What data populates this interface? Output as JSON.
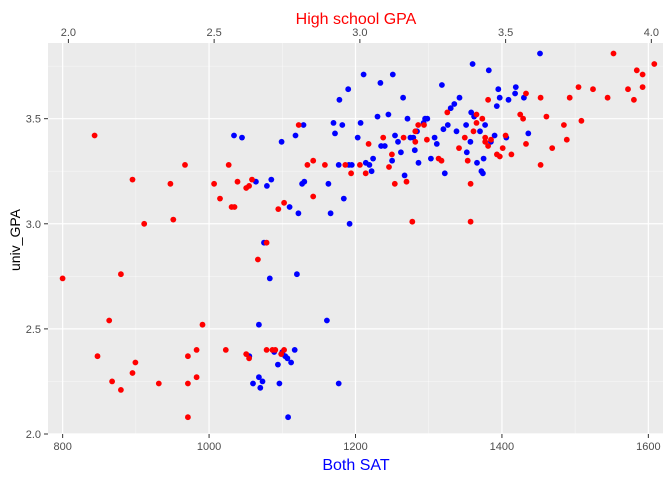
{
  "chart_data": {
    "type": "scatter",
    "xlabel": "Both SAT",
    "x2label": "High school GPA",
    "ylabel": "univ_GPA",
    "xlim": [
      780,
      1620
    ],
    "ylim": [
      2.0,
      3.86
    ],
    "x2lim": [
      1.93,
      4.04
    ],
    "xticks": [
      800,
      1000,
      1200,
      1400,
      1600
    ],
    "x2ticks": [
      "2.0",
      "2.5",
      "3.0",
      "3.5",
      "4.0"
    ],
    "yticks": [
      "2.0",
      "2.5",
      "3.0",
      "3.5"
    ],
    "grid": true,
    "colors": {
      "panel_bg": "#ebebeb",
      "grid_major": "#ffffff",
      "sat_series": "#0000ff",
      "hs_series": "#ff0000",
      "x_title": "#0000ff",
      "x2_title": "#ff0000"
    },
    "series": [
      {
        "axis": "bottom",
        "color": "#0000ff",
        "points": [
          [
            1034,
            3.42
          ],
          [
            1045,
            3.41
          ],
          [
            1055,
            2.37
          ],
          [
            1060,
            2.24
          ],
          [
            1064,
            3.2
          ],
          [
            1068,
            2.52
          ],
          [
            1068,
            2.27
          ],
          [
            1070,
            2.22
          ],
          [
            1073,
            2.25
          ],
          [
            1075,
            2.91
          ],
          [
            1079,
            3.18
          ],
          [
            1083,
            2.74
          ],
          [
            1085,
            3.21
          ],
          [
            1089,
            2.39
          ],
          [
            1094,
            2.33
          ],
          [
            1096,
            2.24
          ],
          [
            1099,
            3.39
          ],
          [
            1100,
            2.39
          ],
          [
            1104,
            2.37
          ],
          [
            1107,
            2.36
          ],
          [
            1108,
            2.08
          ],
          [
            1110,
            3.08
          ],
          [
            1112,
            2.34
          ],
          [
            1117,
            2.4
          ],
          [
            1118,
            3.42
          ],
          [
            1120,
            2.76
          ],
          [
            1122,
            3.05
          ],
          [
            1127,
            3.19
          ],
          [
            1129,
            3.47
          ],
          [
            1130,
            3.2
          ],
          [
            1161,
            2.54
          ],
          [
            1163,
            3.19
          ],
          [
            1166,
            3.05
          ],
          [
            1170,
            3.48
          ],
          [
            1172,
            3.43
          ],
          [
            1177,
            3.28
          ],
          [
            1177,
            2.24
          ],
          [
            1178,
            3.59
          ],
          [
            1182,
            3.47
          ],
          [
            1184,
            3.12
          ],
          [
            1190,
            3.64
          ],
          [
            1191,
            3.28
          ],
          [
            1192,
            3.0
          ],
          [
            1195,
            3.28
          ],
          [
            1203,
            3.41
          ],
          [
            1207,
            3.48
          ],
          [
            1211,
            3.71
          ],
          [
            1214,
            3.29
          ],
          [
            1219,
            3.28
          ],
          [
            1222,
            3.25
          ],
          [
            1224,
            3.31
          ],
          [
            1230,
            3.51
          ],
          [
            1234,
            3.67
          ],
          [
            1235,
            3.37
          ],
          [
            1240,
            3.37
          ],
          [
            1245,
            3.52
          ],
          [
            1250,
            3.3
          ],
          [
            1251,
            3.71
          ],
          [
            1254,
            3.42
          ],
          [
            1258,
            3.39
          ],
          [
            1262,
            3.34
          ],
          [
            1265,
            3.6
          ],
          [
            1267,
            3.23
          ],
          [
            1271,
            3.5
          ],
          [
            1275,
            3.41
          ],
          [
            1279,
            3.41
          ],
          [
            1281,
            3.35
          ],
          [
            1284,
            3.44
          ],
          [
            1286,
            3.29
          ],
          [
            1293,
            3.48
          ],
          [
            1295,
            3.5
          ],
          [
            1298,
            3.5
          ],
          [
            1303,
            3.31
          ],
          [
            1308,
            3.41
          ],
          [
            1311,
            3.38
          ],
          [
            1318,
            3.66
          ],
          [
            1320,
            3.45
          ],
          [
            1322,
            3.24
          ],
          [
            1326,
            3.47
          ],
          [
            1330,
            3.55
          ],
          [
            1335,
            3.57
          ],
          [
            1338,
            3.44
          ],
          [
            1342,
            3.6
          ],
          [
            1351,
            3.47
          ],
          [
            1352,
            3.34
          ],
          [
            1357,
            3.39
          ],
          [
            1358,
            3.53
          ],
          [
            1360,
            3.76
          ],
          [
            1362,
            3.51
          ],
          [
            1366,
            3.29
          ],
          [
            1370,
            3.44
          ],
          [
            1372,
            3.25
          ],
          [
            1374,
            3.24
          ],
          [
            1375,
            3.31
          ],
          [
            1377,
            3.47
          ],
          [
            1382,
            3.73
          ],
          [
            1385,
            3.39
          ],
          [
            1390,
            3.42
          ],
          [
            1393,
            3.56
          ],
          [
            1395,
            3.64
          ],
          [
            1397,
            3.6
          ],
          [
            1406,
            3.41
          ],
          [
            1409,
            3.59
          ],
          [
            1418,
            3.62
          ],
          [
            1419,
            3.65
          ],
          [
            1430,
            3.6
          ],
          [
            1436,
            3.43
          ],
          [
            1452,
            3.81
          ]
        ]
      },
      {
        "axis": "top",
        "color": "#ff0000",
        "points": [
          [
            1.98,
            2.74
          ],
          [
            2.09,
            3.42
          ],
          [
            2.1,
            2.37
          ],
          [
            2.14,
            2.54
          ],
          [
            2.15,
            2.25
          ],
          [
            2.18,
            2.76
          ],
          [
            2.18,
            2.21
          ],
          [
            2.22,
            3.21
          ],
          [
            2.22,
            2.29
          ],
          [
            2.23,
            2.34
          ],
          [
            2.26,
            3.0
          ],
          [
            2.31,
            2.24
          ],
          [
            2.35,
            3.19
          ],
          [
            2.36,
            3.02
          ],
          [
            2.4,
            3.28
          ],
          [
            2.41,
            2.37
          ],
          [
            2.41,
            2.24
          ],
          [
            2.41,
            2.08
          ],
          [
            2.44,
            2.4
          ],
          [
            2.44,
            2.27
          ],
          [
            2.46,
            2.52
          ],
          [
            2.5,
            3.19
          ],
          [
            2.52,
            3.12
          ],
          [
            2.54,
            2.4
          ],
          [
            2.55,
            3.28
          ],
          [
            2.56,
            3.08
          ],
          [
            2.57,
            3.08
          ],
          [
            2.58,
            3.2
          ],
          [
            2.61,
            3.17
          ],
          [
            2.62,
            3.18
          ],
          [
            2.61,
            2.38
          ],
          [
            2.62,
            2.36
          ],
          [
            2.63,
            3.21
          ],
          [
            2.65,
            2.83
          ],
          [
            2.68,
            2.91
          ],
          [
            2.68,
            2.4
          ],
          [
            2.7,
            2.4
          ],
          [
            2.71,
            2.4
          ],
          [
            2.72,
            3.07
          ],
          [
            2.73,
            2.38
          ],
          [
            2.74,
            3.1
          ],
          [
            2.74,
            2.4
          ],
          [
            2.79,
            3.47
          ],
          [
            2.82,
            3.28
          ],
          [
            2.84,
            3.3
          ],
          [
            2.84,
            3.13
          ],
          [
            2.88,
            3.28
          ],
          [
            2.95,
            3.28
          ],
          [
            2.97,
            3.24
          ],
          [
            3.0,
            3.28
          ],
          [
            3.02,
            3.24
          ],
          [
            3.03,
            3.38
          ],
          [
            3.08,
            3.41
          ],
          [
            3.1,
            3.27
          ],
          [
            3.11,
            3.33
          ],
          [
            3.12,
            3.19
          ],
          [
            3.15,
            3.41
          ],
          [
            3.16,
            3.2
          ],
          [
            3.18,
            3.01
          ],
          [
            3.19,
            3.44
          ],
          [
            3.19,
            3.39
          ],
          [
            3.2,
            3.47
          ],
          [
            3.22,
            3.47
          ],
          [
            3.23,
            3.4
          ],
          [
            3.27,
            3.31
          ],
          [
            3.28,
            3.3
          ],
          [
            3.3,
            3.53
          ],
          [
            3.34,
            3.36
          ],
          [
            3.36,
            3.41
          ],
          [
            3.37,
            3.3
          ],
          [
            3.38,
            3.19
          ],
          [
            3.38,
            3.01
          ],
          [
            3.39,
            3.44
          ],
          [
            3.4,
            3.48
          ],
          [
            3.4,
            3.52
          ],
          [
            3.42,
            3.5
          ],
          [
            3.43,
            3.41
          ],
          [
            3.43,
            3.39
          ],
          [
            3.44,
            3.37
          ],
          [
            3.44,
            3.59
          ],
          [
            3.45,
            3.4
          ],
          [
            3.47,
            3.33
          ],
          [
            3.48,
            3.32
          ],
          [
            3.49,
            3.36
          ],
          [
            3.5,
            3.42
          ],
          [
            3.52,
            3.33
          ],
          [
            3.55,
            3.52
          ],
          [
            3.56,
            3.5
          ],
          [
            3.57,
            3.38
          ],
          [
            3.57,
            3.62
          ],
          [
            3.62,
            3.28
          ],
          [
            3.62,
            3.6
          ],
          [
            3.64,
            3.51
          ],
          [
            3.66,
            3.36
          ],
          [
            3.7,
            3.47
          ],
          [
            3.71,
            3.4
          ],
          [
            3.72,
            3.6
          ],
          [
            3.75,
            3.65
          ],
          [
            3.76,
            3.49
          ],
          [
            3.8,
            3.64
          ],
          [
            3.85,
            3.6
          ],
          [
            3.87,
            3.81
          ],
          [
            3.92,
            3.64
          ],
          [
            3.94,
            3.59
          ],
          [
            3.95,
            3.73
          ],
          [
            3.97,
            3.65
          ],
          [
            3.97,
            3.71
          ],
          [
            4.01,
            3.76
          ]
        ]
      }
    ]
  }
}
